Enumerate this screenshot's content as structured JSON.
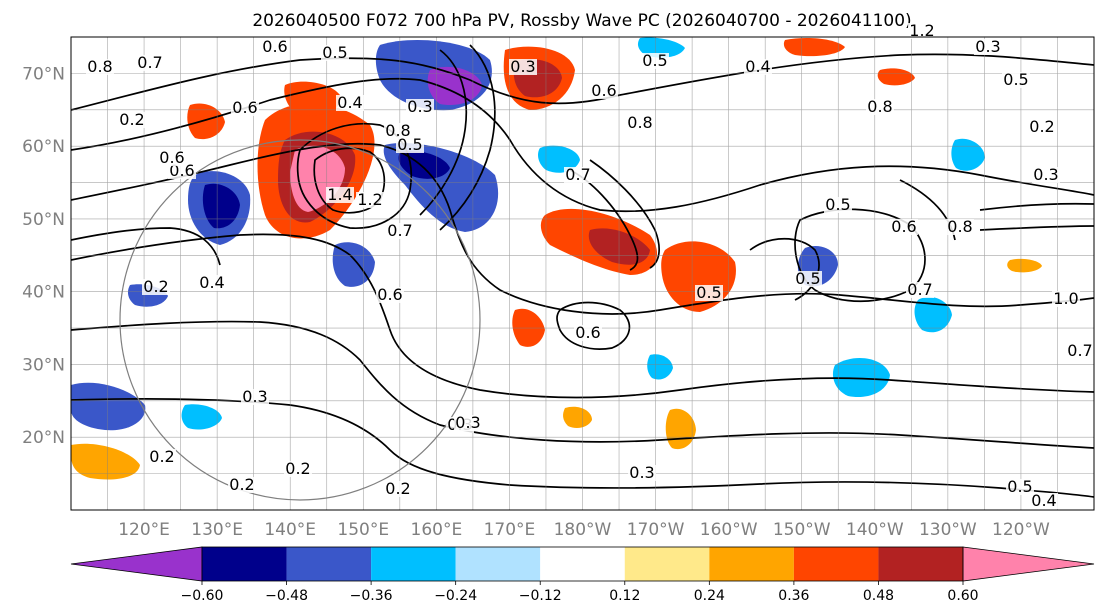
{
  "figure": {
    "title": "2026040500 F072 700 hPa PV, Rossby Wave PC (2026040700 - 2026041100)"
  },
  "map": {
    "projection": "cylindrical",
    "lon_range": [
      110,
      250
    ],
    "lat_range": [
      10,
      75
    ],
    "lat_ticks": [
      "20°N",
      "30°N",
      "40°N",
      "50°N",
      "60°N",
      "70°N"
    ],
    "lat_tick_values": [
      20,
      30,
      40,
      50,
      60,
      70
    ],
    "lon_ticks": [
      "120°E",
      "130°E",
      "140°E",
      "150°E",
      "160°E",
      "170°E",
      "180°W",
      "170°W",
      "160°W",
      "150°W",
      "140°W",
      "130°W",
      "120°W"
    ],
    "lon_tick_values": [
      120,
      130,
      140,
      150,
      160,
      170,
      180,
      190,
      200,
      210,
      220,
      230,
      240
    ],
    "gridlines": true
  },
  "colorbar": {
    "orientation": "horizontal",
    "extend": "both",
    "tick_labels": [
      "−0.60",
      "−0.48",
      "−0.36",
      "−0.24",
      "−0.12",
      "0.12",
      "0.24",
      "0.36",
      "0.48",
      "0.60"
    ],
    "colors": [
      "#9932cc",
      "#00008b",
      "#3a57c9",
      "#00bfff",
      "#b0e2ff",
      "#ffffff",
      "#ffe98a",
      "#ffa500",
      "#ff4500",
      "#b22222",
      "#ff82ab"
    ]
  },
  "contour_labels": [
    "0.6",
    "0.5",
    "0.8",
    "0.7",
    "0.6",
    "0.6",
    "0.4",
    "0.6",
    "0.8",
    "1.4",
    "1.2",
    "0.7",
    "0.5",
    "0.6",
    "0.7",
    "0.3",
    "0.5",
    "0.8",
    "0.4",
    "0.6",
    "0.4",
    "0.2",
    "0.3",
    "0.2",
    "0.2",
    "0.2",
    "0.3",
    "0.6",
    "0.5",
    "0.5",
    "0.6",
    "0.8",
    "0.5",
    "0.7",
    "0.3",
    "0.5",
    "0.2",
    "0.2",
    "0.3",
    "0.8",
    "1.0",
    "1.2",
    "0.7",
    "0.5",
    "0.4",
    "0.3",
    "0.3",
    "0.2",
    "0.3"
  ]
}
